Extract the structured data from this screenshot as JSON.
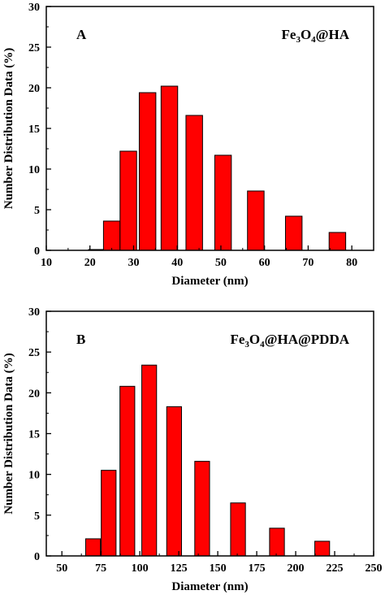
{
  "colors": {
    "bar_fill": "#ff0000",
    "bar_stroke": "#000000",
    "axis": "#000000"
  },
  "chart_data": [
    {
      "type": "bar",
      "panel_label": "A",
      "sample_label": {
        "prefix": "Fe",
        "sub1": "3",
        "mid": "O",
        "sub2": "4",
        "suffix": "@HA"
      },
      "xlabel": "Diameter (nm)",
      "ylabel": "Number Distribution Data (%)",
      "xlim": [
        10,
        85
      ],
      "ylim": [
        0,
        30
      ],
      "xticks": [
        10,
        20,
        30,
        40,
        50,
        60,
        70,
        80
      ],
      "yticks": [
        0,
        5,
        10,
        15,
        20,
        25,
        30
      ],
      "bar_width": 3.8,
      "x": [
        21.6,
        25.0,
        28.8,
        33.2,
        38.2,
        43.9,
        50.5,
        58.0,
        66.7,
        76.7
      ],
      "values": [
        0.1,
        3.6,
        12.2,
        19.4,
        20.2,
        16.6,
        11.7,
        7.3,
        4.2,
        2.2
      ]
    },
    {
      "type": "bar",
      "panel_label": "B",
      "sample_label": {
        "prefix": "Fe",
        "sub1": "3",
        "mid": "O",
        "sub2": "4",
        "suffix": "@HA@PDDA"
      },
      "xlabel": "Diameter (nm)",
      "ylabel": "Number Distribution Data (%)",
      "xlim": [
        40,
        250
      ],
      "ylim": [
        0,
        30
      ],
      "xticks": [
        50,
        75,
        100,
        125,
        150,
        175,
        200,
        225,
        250
      ],
      "yticks": [
        0,
        5,
        10,
        15,
        20,
        25,
        30
      ],
      "bar_width": 9.5,
      "x": [
        70,
        80,
        92,
        106,
        122,
        140,
        163,
        188,
        217
      ],
      "values": [
        2.1,
        10.5,
        20.8,
        23.4,
        18.3,
        11.6,
        6.5,
        3.4,
        1.8
      ]
    }
  ]
}
